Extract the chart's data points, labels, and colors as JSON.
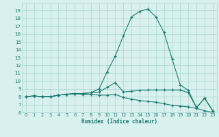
{
  "xlabel": "Humidex (Indice chaleur)",
  "x": [
    0,
    1,
    2,
    3,
    4,
    5,
    6,
    7,
    8,
    9,
    10,
    11,
    12,
    13,
    14,
    15,
    16,
    17,
    18,
    19,
    20,
    21,
    22,
    23
  ],
  "line1": [
    8.0,
    8.1,
    8.0,
    8.0,
    8.2,
    8.3,
    8.4,
    8.4,
    8.5,
    9.0,
    11.2,
    13.2,
    15.8,
    18.2,
    18.9,
    19.2,
    18.2,
    16.2,
    12.8,
    9.5,
    8.8,
    6.6,
    7.8,
    6.2
  ],
  "line2": [
    8.0,
    8.1,
    8.0,
    8.0,
    8.2,
    8.3,
    8.4,
    8.4,
    8.5,
    8.6,
    9.2,
    9.8,
    8.6,
    8.7,
    8.8,
    8.85,
    8.85,
    8.85,
    8.85,
    8.85,
    8.5,
    6.6,
    7.8,
    6.2
  ],
  "line3": [
    8.0,
    8.1,
    8.0,
    8.0,
    8.2,
    8.3,
    8.4,
    8.3,
    8.3,
    8.2,
    8.2,
    8.3,
    7.9,
    7.7,
    7.5,
    7.4,
    7.3,
    7.1,
    6.9,
    6.8,
    6.7,
    6.5,
    6.2,
    6.0
  ],
  "line_color": "#1a7a6e",
  "bg_color": "#d8f0ee",
  "grid_color": "#a8d4d0",
  "ylim": [
    6,
    20
  ],
  "xlim": [
    -0.5,
    23.5
  ],
  "yticks": [
    6,
    7,
    8,
    9,
    10,
    11,
    12,
    13,
    14,
    15,
    16,
    17,
    18,
    19
  ],
  "xticks": [
    0,
    1,
    2,
    3,
    4,
    5,
    6,
    7,
    8,
    9,
    10,
    11,
    12,
    13,
    14,
    15,
    16,
    17,
    18,
    19,
    20,
    21,
    22,
    23
  ]
}
